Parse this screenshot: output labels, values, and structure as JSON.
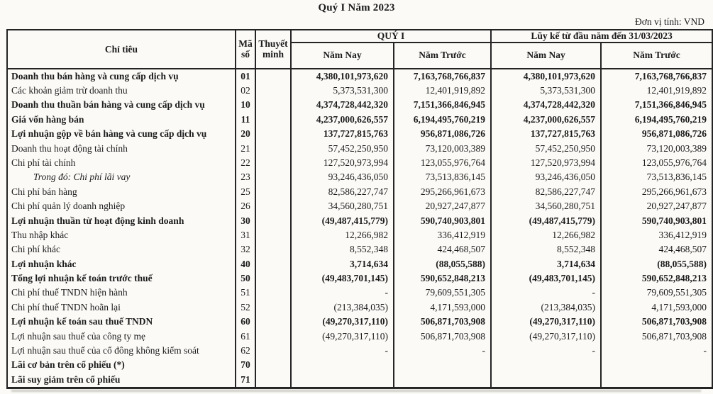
{
  "page": {
    "title": "Quý I Năm 2023",
    "unit_label": "Đơn vị tính: VND"
  },
  "colors": {
    "ink": "#1b1b1b",
    "paper": "#fbfaf7"
  },
  "table": {
    "headers": {
      "criteria": "Chỉ tiêu",
      "code": "Mã số",
      "notes": "Thuyết minh",
      "q1_group": "QUÝ I",
      "cumulative_group": "Lũy kế từ đầu năm đến 31/03/2023",
      "current_year": "Năm Nay",
      "prior_year": "Năm Trước"
    },
    "rows": [
      {
        "label": "Doanh thu bán hàng và cung cấp dịch vụ",
        "code": "01",
        "style": "bold",
        "values": [
          "4,380,101,973,620",
          "7,163,768,766,837",
          "4,380,101,973,620",
          "7,163,768,766,837"
        ]
      },
      {
        "label": "Các khoản giảm trừ doanh thu",
        "code": "02",
        "style": "normal",
        "values": [
          "5,373,531,300",
          "12,401,919,892",
          "5,373,531,300",
          "12,401,919,892"
        ]
      },
      {
        "label": "Doanh thu thuần bán hàng và cung cấp dịch vụ",
        "code": "10",
        "style": "bold",
        "values": [
          "4,374,728,442,320",
          "7,151,366,846,945",
          "4,374,728,442,320",
          "7,151,366,846,945"
        ]
      },
      {
        "label": "Giá vốn hàng bán",
        "code": "11",
        "style": "bold",
        "values": [
          "4,237,000,626,557",
          "6,194,495,760,219",
          "4,237,000,626,557",
          "6,194,495,760,219"
        ]
      },
      {
        "label": "Lợi nhuận gộp về bán hàng và cung cấp dịch vụ",
        "code": "20",
        "style": "bold",
        "values": [
          "137,727,815,763",
          "956,871,086,726",
          "137,727,815,763",
          "956,871,086,726"
        ]
      },
      {
        "label": "Doanh thu hoạt động tài chính",
        "code": "21",
        "style": "normal",
        "values": [
          "57,452,250,950",
          "73,120,003,389",
          "57,452,250,950",
          "73,120,003,389"
        ]
      },
      {
        "label": "Chi phí tài chính",
        "code": "22",
        "style": "normal",
        "values": [
          "127,520,973,994",
          "123,055,976,764",
          "127,520,973,994",
          "123,055,976,764"
        ]
      },
      {
        "label": "Trong đó: Chi phí lãi vay",
        "code": "23",
        "style": "italic",
        "values": [
          "93,246,436,050",
          "73,513,836,145",
          "93,246,436,050",
          "73,513,836,145"
        ]
      },
      {
        "label": "Chi phí bán hàng",
        "code": "25",
        "style": "normal",
        "values": [
          "82,586,227,747",
          "295,266,961,673",
          "82,586,227,747",
          "295,266,961,673"
        ]
      },
      {
        "label": "Chi phí quản lý doanh nghiệp",
        "code": "26",
        "style": "normal",
        "values": [
          "34,560,280,751",
          "20,927,247,877",
          "34,560,280,751",
          "20,927,247,877"
        ]
      },
      {
        "label": "Lợi nhuận thuần từ hoạt động kinh doanh",
        "code": "30",
        "style": "bold",
        "values": [
          "(49,487,415,779)",
          "590,740,903,801",
          "(49,487,415,779)",
          "590,740,903,801"
        ]
      },
      {
        "label": "Thu nhập khác",
        "code": "31",
        "style": "normal",
        "values": [
          "12,266,982",
          "336,412,919",
          "12,266,982",
          "336,412,919"
        ]
      },
      {
        "label": "Chi phí khác",
        "code": "32",
        "style": "normal",
        "values": [
          "8,552,348",
          "424,468,507",
          "8,552,348",
          "424,468,507"
        ]
      },
      {
        "label": "Lợi nhuận khác",
        "code": "40",
        "style": "bold",
        "values": [
          "3,714,634",
          "(88,055,588)",
          "3,714,634",
          "(88,055,588)"
        ]
      },
      {
        "label": "Tổng lợi nhuận kế toán trước thuế",
        "code": "50",
        "style": "bold",
        "values": [
          "(49,483,701,145)",
          "590,652,848,213",
          "(49,483,701,145)",
          "590,652,848,213"
        ]
      },
      {
        "label": "Chi phí thuế TNDN hiện hành",
        "code": "51",
        "style": "normal",
        "values": [
          "-",
          "79,609,551,305",
          "-",
          "79,609,551,305"
        ]
      },
      {
        "label": "Chi phí thuế TNDN hoãn lại",
        "code": "52",
        "style": "normal",
        "values": [
          "(213,384,035)",
          "4,171,593,000",
          "(213,384,035)",
          "4,171,593,000"
        ]
      },
      {
        "label": "Lợi nhuận kế toán sau thuế TNDN",
        "code": "60",
        "style": "bold",
        "values": [
          "(49,270,317,110)",
          "506,871,703,908",
          "(49,270,317,110)",
          "506,871,703,908"
        ]
      },
      {
        "label": "Lợi nhuận sau thuế của công ty mẹ",
        "code": "61",
        "style": "normal",
        "values": [
          "(49,270,317,110)",
          "506,871,703,908",
          "(49,270,317,110)",
          "506,871,703,908"
        ]
      },
      {
        "label": "Lợi nhuận sau thuế của cổ đông không kiểm soát",
        "code": "62",
        "style": "normal",
        "values": [
          "-",
          "-",
          "-",
          "-"
        ]
      },
      {
        "label": "Lãi cơ bản trên cổ phiếu (*)",
        "code": "70",
        "style": "bold",
        "values": [
          "",
          "",
          "",
          ""
        ]
      },
      {
        "label": "Lãi suy giảm trên cổ phiếu",
        "code": "71",
        "style": "bold",
        "values": [
          "",
          "",
          "",
          ""
        ]
      }
    ]
  }
}
